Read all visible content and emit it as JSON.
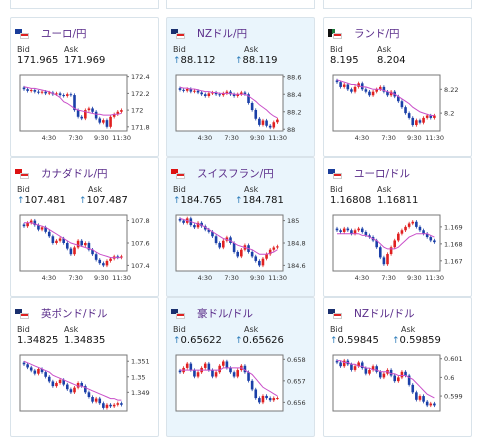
{
  "labels": {
    "bid": "Bid",
    "ask": "Ask"
  },
  "cards": [
    {
      "title": "ユーロ/円",
      "flag": "eu",
      "bid": "171.965",
      "ask": "171.969",
      "arrows": false,
      "hl": false,
      "ylabels": [
        "172.4",
        "172.2",
        "172",
        "171.8"
      ],
      "xlabels": [
        "4:30",
        "7:30",
        "9:30",
        "11:30"
      ],
      "closes": [
        172.25,
        172.23,
        172.24,
        172.22,
        172.21,
        172.22,
        172.2,
        172.21,
        172.19,
        172.2,
        172.18,
        172.17,
        172.19,
        172.18,
        172.0,
        171.92,
        171.9,
        172.0,
        172.02,
        171.98,
        171.9,
        171.85,
        171.88,
        171.8,
        171.92,
        171.95,
        171.98,
        172.0
      ],
      "ma": [
        172.28,
        172.27,
        172.26,
        172.26,
        172.25,
        172.24,
        172.23,
        172.22,
        172.2,
        172.18,
        172.15,
        172.1,
        172.08,
        172.05,
        172.02,
        172.0,
        171.99,
        171.98,
        171.97,
        171.96,
        171.95,
        171.95,
        171.94,
        171.94,
        171.94,
        171.95,
        171.95,
        171.96
      ],
      "ymin": 171.75,
      "ymax": 172.42
    },
    {
      "title": "NZドル/円",
      "flag": "nz",
      "bid": "88.112",
      "ask": "88.119",
      "arrows": true,
      "hl": true,
      "ylabels": [
        "88.6",
        "88.4",
        "88.2",
        "88"
      ],
      "xlabels": [
        "4:30",
        "7:30",
        "9:30",
        "11:30"
      ],
      "closes": [
        88.45,
        88.44,
        88.46,
        88.43,
        88.44,
        88.42,
        88.4,
        88.38,
        88.41,
        88.42,
        88.4,
        88.39,
        88.41,
        88.43,
        88.4,
        88.38,
        88.4,
        88.42,
        88.4,
        88.3,
        88.22,
        88.12,
        88.05,
        88.1,
        88.04,
        88.02,
        88.08,
        88.11
      ],
      "ma": [
        88.48,
        88.47,
        88.47,
        88.46,
        88.46,
        88.45,
        88.44,
        88.43,
        88.43,
        88.42,
        88.42,
        88.41,
        88.41,
        88.41,
        88.41,
        88.4,
        88.4,
        88.4,
        88.4,
        88.38,
        88.35,
        88.32,
        88.28,
        88.25,
        88.22,
        88.18,
        88.15,
        88.13
      ],
      "ymin": 87.98,
      "ymax": 88.62
    },
    {
      "title": "ランド/円",
      "flag": "za",
      "bid": "8.195",
      "ask": "8.204",
      "arrows": false,
      "hl": false,
      "ylabels": [
        "8.22",
        "8.2"
      ],
      "xlabels": [
        "4:30",
        "7:30",
        "9:30",
        "11:30"
      ],
      "closes": [
        8.226,
        8.222,
        8.224,
        8.22,
        8.218,
        8.222,
        8.225,
        8.22,
        8.218,
        8.215,
        8.218,
        8.22,
        8.222,
        8.218,
        8.215,
        8.218,
        8.214,
        8.21,
        8.205,
        8.2,
        8.196,
        8.19,
        8.194,
        8.192,
        8.196,
        8.198,
        8.196,
        8.198
      ],
      "ma": [
        8.228,
        8.227,
        8.226,
        8.225,
        8.224,
        8.224,
        8.223,
        8.222,
        8.222,
        8.221,
        8.22,
        8.22,
        8.22,
        8.219,
        8.218,
        8.217,
        8.216,
        8.214,
        8.212,
        8.21,
        8.208,
        8.205,
        8.203,
        8.201,
        8.2,
        8.199,
        8.198,
        8.198
      ],
      "ymin": 8.185,
      "ymax": 8.232
    },
    {
      "title": "カナダドル/円",
      "flag": "ca",
      "bid": "107.481",
      "ask": "107.487",
      "arrows": true,
      "hl": false,
      "ylabels": [
        "107.8",
        "107.6",
        "107.4"
      ],
      "xlabels": [
        "4:30",
        "7:30",
        "9:30",
        "11:30"
      ],
      "closes": [
        107.75,
        107.78,
        107.8,
        107.76,
        107.72,
        107.74,
        107.7,
        107.66,
        107.6,
        107.62,
        107.64,
        107.6,
        107.55,
        107.5,
        107.56,
        107.62,
        107.58,
        107.6,
        107.54,
        107.5,
        107.45,
        107.42,
        107.4,
        107.44,
        107.46,
        107.48,
        107.47,
        107.48
      ],
      "ma": [
        107.78,
        107.78,
        107.78,
        107.77,
        107.76,
        107.75,
        107.74,
        107.72,
        107.7,
        107.68,
        107.66,
        107.64,
        107.62,
        107.6,
        107.59,
        107.58,
        107.57,
        107.56,
        107.55,
        107.54,
        107.52,
        107.5,
        107.49,
        107.48,
        107.47,
        107.47,
        107.47,
        107.47
      ],
      "ymin": 107.35,
      "ymax": 107.85
    },
    {
      "title": "スイスフラン/円",
      "flag": "ch",
      "bid": "184.765",
      "ask": "184.781",
      "arrows": true,
      "hl": true,
      "ylabels": [
        "185",
        "184.8",
        "184.6"
      ],
      "xlabels": [
        "4:30",
        "7:30",
        "9:30",
        "11:30"
      ],
      "closes": [
        185.0,
        184.98,
        185.02,
        184.96,
        184.94,
        184.98,
        184.95,
        184.92,
        184.9,
        184.86,
        184.8,
        184.76,
        184.82,
        184.85,
        184.8,
        184.72,
        184.68,
        184.74,
        184.78,
        184.72,
        184.68,
        184.64,
        184.6,
        184.66,
        184.7,
        184.74,
        184.76,
        184.77
      ],
      "ma": [
        185.02,
        185.01,
        185.0,
        184.99,
        184.98,
        184.97,
        184.96,
        184.94,
        184.92,
        184.9,
        184.88,
        184.86,
        184.84,
        184.83,
        184.82,
        184.8,
        184.78,
        184.77,
        184.76,
        184.75,
        184.74,
        184.72,
        184.7,
        184.7,
        184.7,
        184.71,
        184.72,
        184.74
      ],
      "ymin": 184.55,
      "ymax": 185.05
    },
    {
      "title": "ユーロ/ドル",
      "flag": "us",
      "bid": "1.16808",
      "ask": "1.16811",
      "arrows": false,
      "hl": false,
      "ylabels": [
        "1.169",
        "1.168",
        "1.167"
      ],
      "xlabels": [
        "4:30",
        "7:30",
        "9:30",
        "11:30"
      ],
      "closes": [
        1.1688,
        1.1687,
        1.1689,
        1.1688,
        1.1686,
        1.1688,
        1.1689,
        1.1687,
        1.1685,
        1.1684,
        1.1682,
        1.1678,
        1.1672,
        1.1668,
        1.1674,
        1.1678,
        1.1682,
        1.1686,
        1.1688,
        1.169,
        1.1692,
        1.1693,
        1.169,
        1.1688,
        1.1686,
        1.1684,
        1.1682,
        1.1681
      ],
      "ma": [
        1.1686,
        1.1686,
        1.1686,
        1.1686,
        1.1686,
        1.1686,
        1.1686,
        1.1685,
        1.1685,
        1.1684,
        1.1683,
        1.1682,
        1.168,
        1.1678,
        1.1677,
        1.1677,
        1.1677,
        1.1678,
        1.168,
        1.1682,
        1.1684,
        1.1685,
        1.1686,
        1.1686,
        1.1686,
        1.1686,
        1.1685,
        1.1684
      ],
      "ymin": 1.1664,
      "ymax": 1.1697
    },
    {
      "title": "英ポンド/ドル",
      "flag": "gb",
      "bid": "1.34825",
      "ask": "1.34835",
      "arrows": false,
      "hl": false,
      "ylabels": [
        "1.351",
        "1.35",
        "1.349"
      ],
      "xlabels": [],
      "closes": [
        1.3508,
        1.3506,
        1.3504,
        1.3502,
        1.3505,
        1.3503,
        1.35,
        1.3497,
        1.3494,
        1.3496,
        1.3498,
        1.3495,
        1.3492,
        1.349,
        1.3493,
        1.3496,
        1.3494,
        1.349,
        1.3487,
        1.3484,
        1.3486,
        1.3483,
        1.348,
        1.3482,
        1.3481,
        1.3482,
        1.3483,
        1.3482
      ],
      "ma": [
        1.351,
        1.3509,
        1.3508,
        1.3507,
        1.3506,
        1.3505,
        1.3504,
        1.3503,
        1.3501,
        1.35,
        1.3499,
        1.3498,
        1.3497,
        1.3496,
        1.3495,
        1.3494,
        1.3494,
        1.3493,
        1.3492,
        1.3491,
        1.349,
        1.3489,
        1.3488,
        1.3487,
        1.3486,
        1.3486,
        1.3485,
        1.3485
      ],
      "ymin": 1.3478,
      "ymax": 1.3514
    },
    {
      "title": "豪ドル/ドル",
      "flag": "au",
      "bid": "0.65622",
      "ask": "0.65626",
      "arrows": true,
      "hl": true,
      "ylabels": [
        "0.658",
        "0.657",
        "0.656"
      ],
      "xlabels": [],
      "closes": [
        0.6574,
        0.6576,
        0.6578,
        0.6575,
        0.6572,
        0.6574,
        0.6576,
        0.6578,
        0.6575,
        0.6572,
        0.6574,
        0.6577,
        0.6579,
        0.6576,
        0.6574,
        0.6572,
        0.6575,
        0.6577,
        0.6574,
        0.657,
        0.6566,
        0.6562,
        0.656,
        0.6563,
        0.6562,
        0.6561,
        0.6562,
        0.6562
      ],
      "ma": [
        0.6575,
        0.6575,
        0.6575,
        0.6575,
        0.6575,
        0.6575,
        0.6575,
        0.6575,
        0.6575,
        0.6575,
        0.6575,
        0.6575,
        0.6576,
        0.6576,
        0.6576,
        0.6576,
        0.6576,
        0.6576,
        0.6575,
        0.6574,
        0.6573,
        0.6571,
        0.6569,
        0.6567,
        0.6566,
        0.6565,
        0.6564,
        0.6563
      ],
      "ymin": 0.6556,
      "ymax": 0.6582
    },
    {
      "title": "NZドル/ドル",
      "flag": "nz",
      "bid": "0.59845",
      "ask": "0.59859",
      "arrows": true,
      "hl": false,
      "ylabels": [
        "0.601",
        "0.6",
        "0.599"
      ],
      "xlabels": [],
      "closes": [
        0.6008,
        0.6006,
        0.6009,
        0.6007,
        0.6004,
        0.6006,
        0.6008,
        0.6005,
        0.6002,
        0.6004,
        0.6006,
        0.6003,
        0.6,
        0.6002,
        0.6004,
        0.6001,
        0.5998,
        0.6,
        0.6003,
        0.6001,
        0.5996,
        0.5992,
        0.5988,
        0.599,
        0.5987,
        0.5985,
        0.5986,
        0.5985
      ],
      "ma": [
        0.6009,
        0.6009,
        0.6008,
        0.6008,
        0.6007,
        0.6007,
        0.6006,
        0.6006,
        0.6005,
        0.6005,
        0.6004,
        0.6004,
        0.6003,
        0.6003,
        0.6003,
        0.6002,
        0.6002,
        0.6001,
        0.6001,
        0.6001,
        0.6,
        0.5999,
        0.5997,
        0.5995,
        0.5993,
        0.5991,
        0.599,
        0.5989
      ],
      "ymin": 0.5982,
      "ymax": 0.6012
    }
  ]
}
